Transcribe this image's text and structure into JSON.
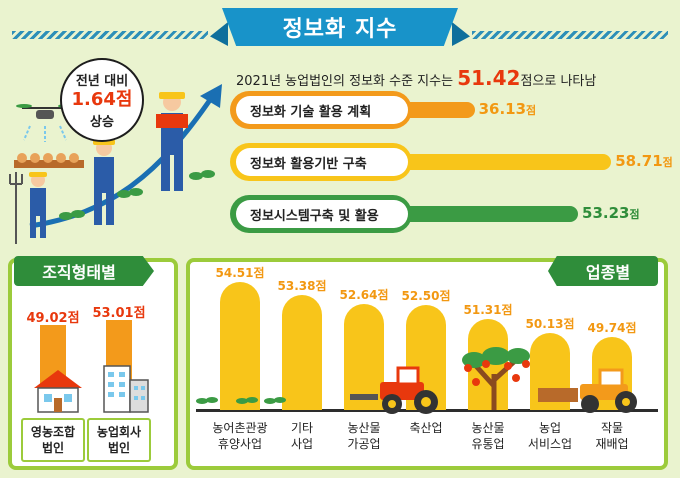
{
  "header": {
    "title": "정보화 지수"
  },
  "yoy": {
    "line1": "전년 대비",
    "value": "1.64점",
    "line3": "상승"
  },
  "summary": {
    "prefix": "2021년 농업법인의 정보화 수준 지수는 ",
    "value": "51.42",
    "suffix": "점으로 나타남"
  },
  "sections": {
    "org_type": "조직형태별",
    "industry": "업종별"
  },
  "chart_data": [
    {
      "type": "bar",
      "orientation": "horizontal",
      "categories": [
        "정보화 기술 활용 계획",
        "정보화 활용기반 구축",
        "정보시스템구축 및 활용"
      ],
      "values": [
        36.13,
        58.71,
        53.23
      ],
      "value_labels": [
        "36.13",
        "58.71",
        "53.23"
      ],
      "unit": "점",
      "colors": [
        "#f39a1b",
        "#f8c51a",
        "#3b9b44"
      ]
    },
    {
      "type": "bar",
      "categories": [
        "영농조합\n법인",
        "농업회사\n법인"
      ],
      "values": [
        49.02,
        53.01
      ],
      "value_labels": [
        "49.02점",
        "53.01점"
      ],
      "color": "#f39a1b"
    },
    {
      "type": "bar",
      "categories": [
        "농어촌관광\n휴양사업",
        "기타\n사업",
        "농산물\n가공업",
        "축산업",
        "농산물\n유통업",
        "농업\n서비스업",
        "작물\n재배업"
      ],
      "values": [
        54.51,
        53.38,
        52.64,
        52.5,
        51.31,
        50.13,
        49.74
      ],
      "value_labels": [
        "54.51점",
        "53.38점",
        "52.64점",
        "52.50점",
        "51.31점",
        "50.13점",
        "49.74점"
      ],
      "color": "#f8c51a"
    }
  ],
  "icons": [
    "drone-icon",
    "farmer-icon",
    "seedling-icon",
    "house-icon",
    "building-icon",
    "tractor-icon",
    "fruit-tree-icon",
    "rising-arrow-icon",
    "pitchfork-icon"
  ]
}
